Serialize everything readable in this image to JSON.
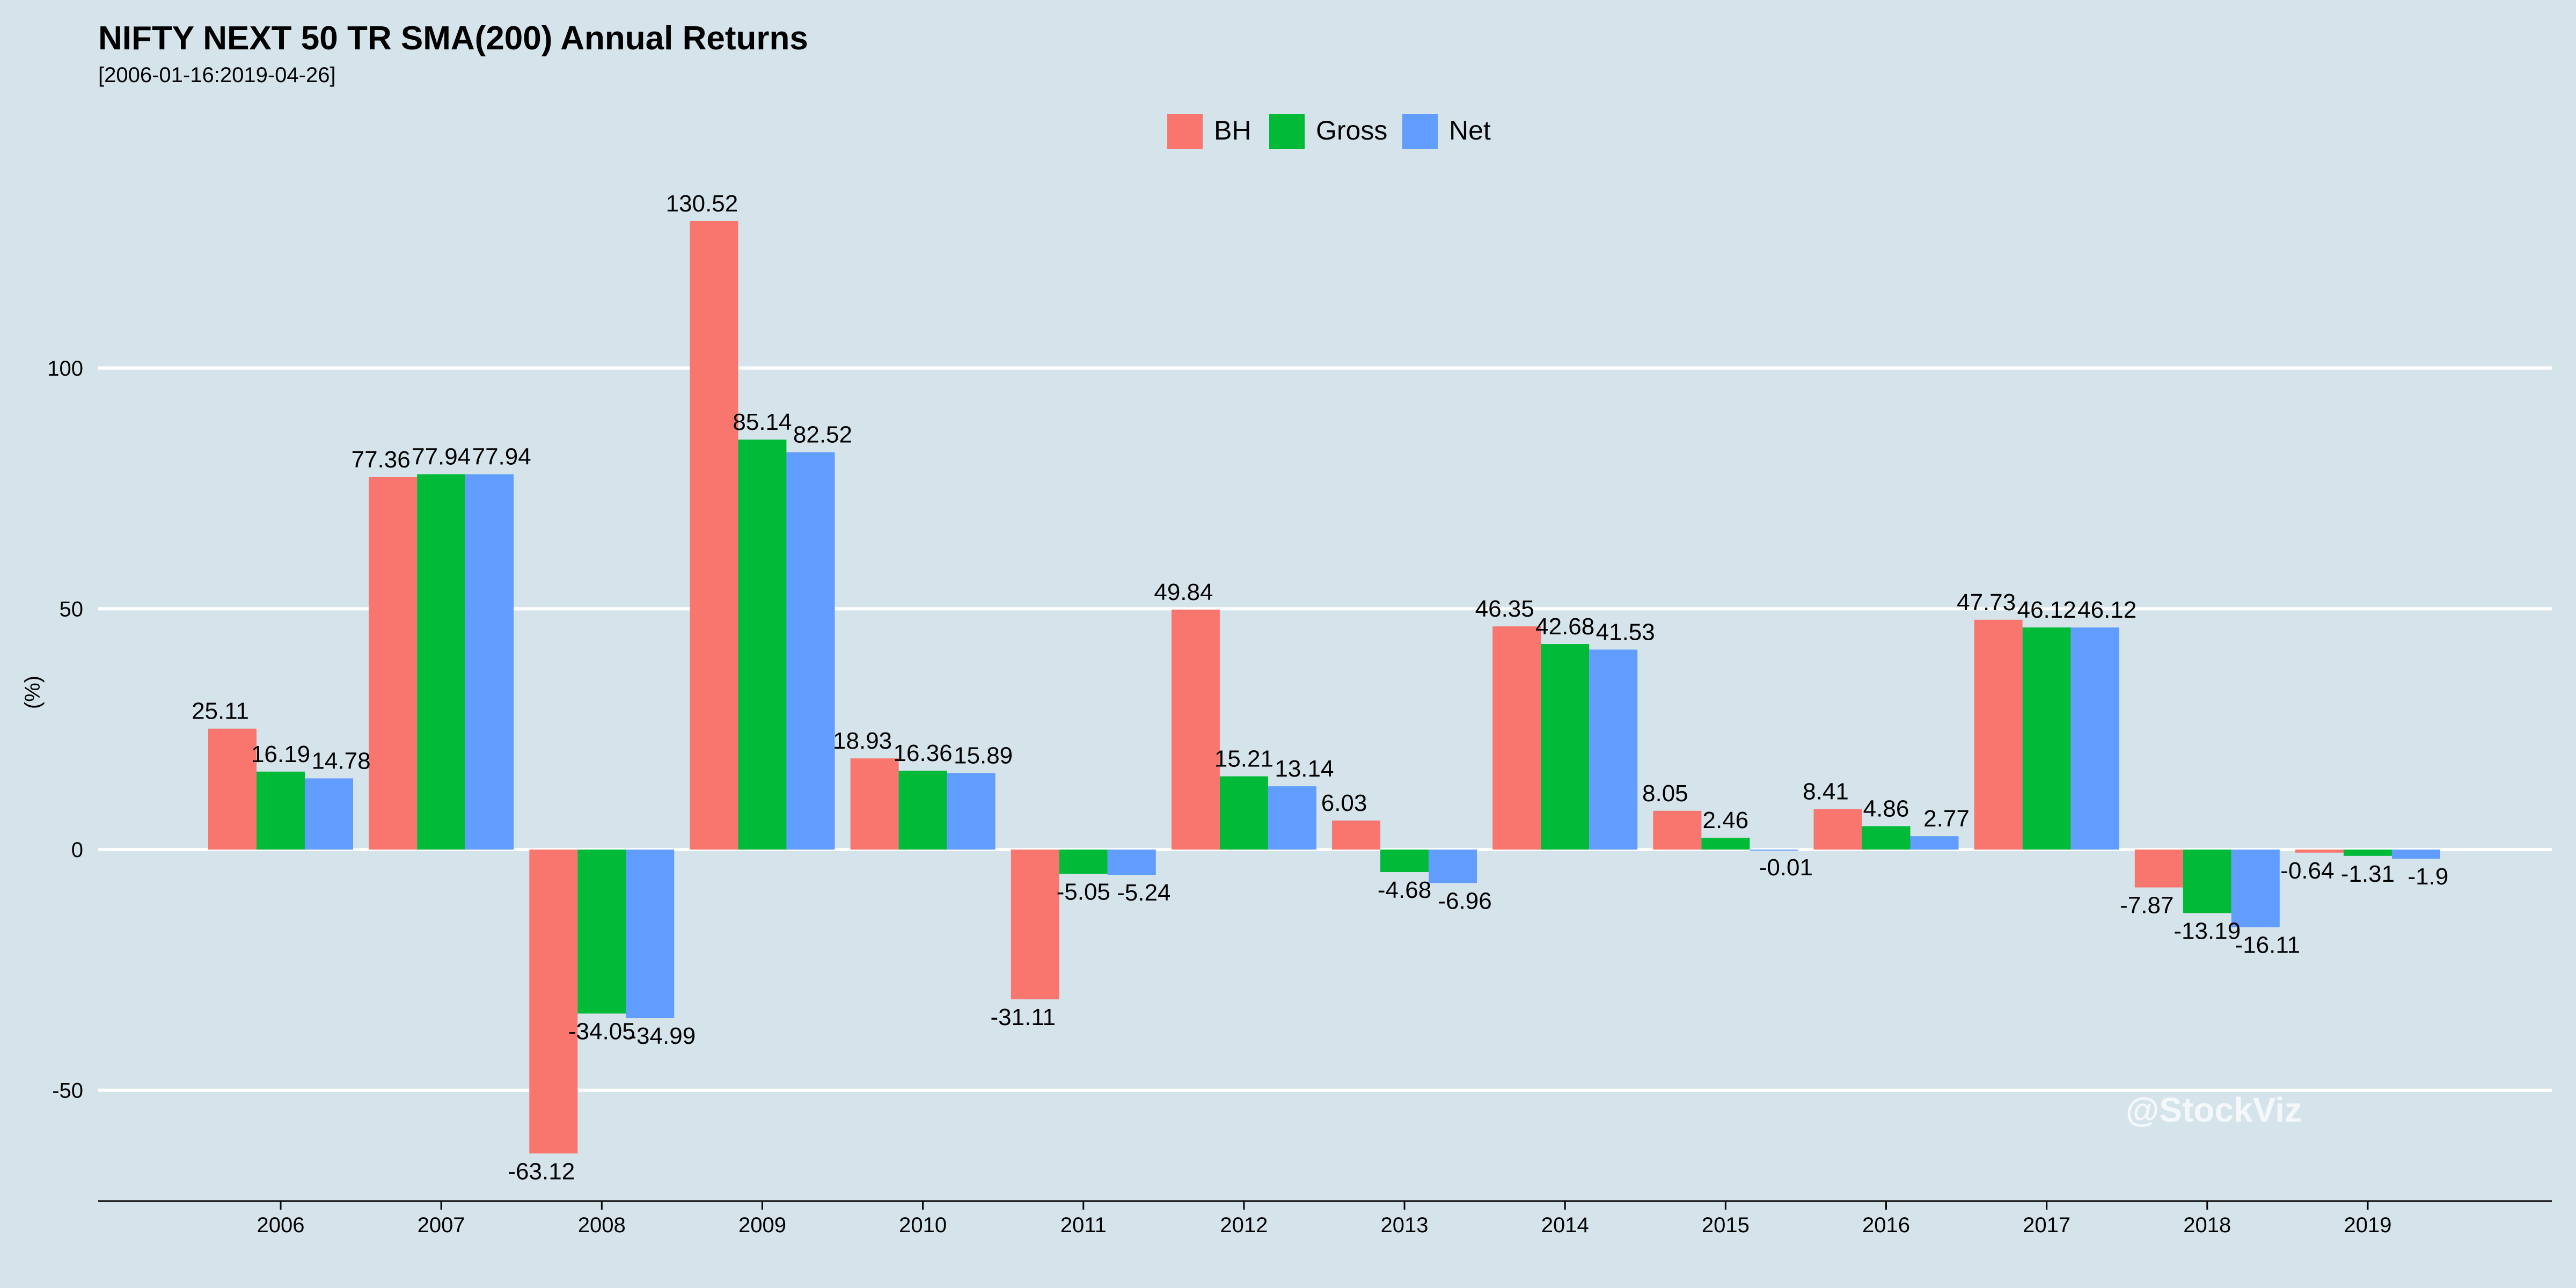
{
  "chart_data": {
    "type": "bar",
    "title": "NIFTY NEXT 50 TR SMA(200) Annual Returns",
    "subtitle": "[2006-01-16:2019-04-26]",
    "xlabel": "",
    "ylabel": "(%)",
    "ylim": [
      -73,
      143
    ],
    "yticks": [
      -50,
      0,
      50,
      100
    ],
    "grid": true,
    "legend_position": "top",
    "categories": [
      "2006",
      "2007",
      "2008",
      "2009",
      "2010",
      "2011",
      "2012",
      "2013",
      "2014",
      "2015",
      "2016",
      "2017",
      "2018",
      "2019"
    ],
    "series": [
      {
        "name": "BH",
        "color": "#f8766d",
        "values": [
          25.11,
          77.36,
          -63.12,
          130.52,
          18.93,
          -31.11,
          49.84,
          6.03,
          46.35,
          8.05,
          8.41,
          47.73,
          -7.87,
          -0.64
        ],
        "labels": [
          "25.11",
          "77.36",
          "-63.12",
          "130.52",
          "18.93",
          "-31.11",
          "49.84",
          "6.03",
          "46.35",
          "8.05",
          "8.41",
          "47.73",
          "-7.87",
          "-0.64"
        ]
      },
      {
        "name": "Gross",
        "color": "#00ba38",
        "values": [
          16.19,
          77.94,
          -34.05,
          85.14,
          16.36,
          -5.05,
          15.21,
          -4.68,
          42.68,
          2.46,
          4.86,
          46.12,
          -13.19,
          -1.31
        ],
        "labels": [
          "16.19",
          "77.94",
          "-34.05",
          "85.14",
          "16.36",
          "-5.05",
          "15.21",
          "-4.68",
          "42.68",
          "2.46",
          "4.86",
          "46.12",
          "-13.19",
          "-1.31"
        ]
      },
      {
        "name": "Net",
        "color": "#619cff",
        "values": [
          14.78,
          77.94,
          -34.99,
          82.52,
          15.89,
          -5.24,
          13.14,
          -6.96,
          41.53,
          -0.01,
          2.77,
          46.12,
          -16.11,
          -1.9
        ],
        "labels": [
          "14.78",
          "77.94",
          "-34.99",
          "82.52",
          "15.89",
          "-5.24",
          "13.14",
          "-6.96",
          "41.53",
          "-0.01",
          "2.77",
          "46.12",
          "-16.11",
          "-1.9"
        ]
      }
    ],
    "watermark": "@StockViz"
  }
}
